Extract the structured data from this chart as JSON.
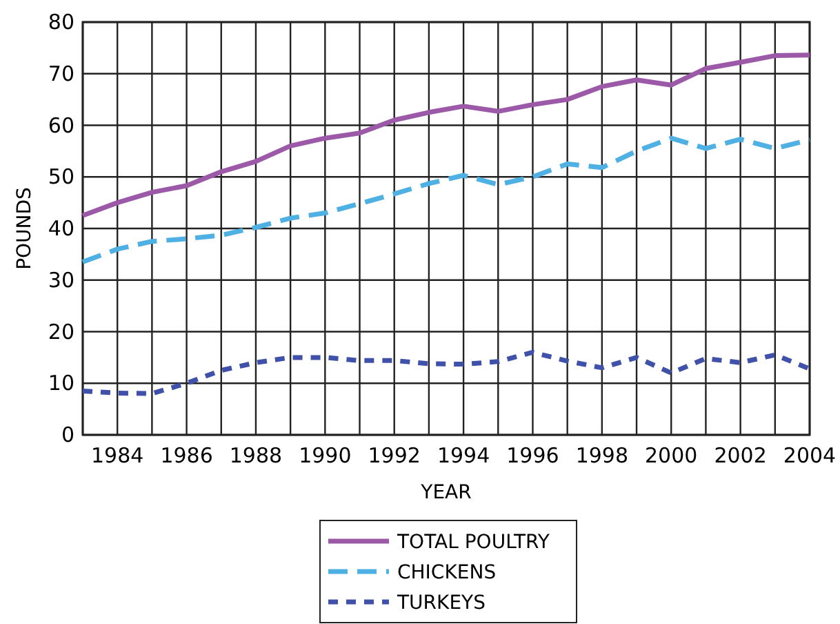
{
  "chart_data": {
    "type": "line",
    "xlabel": "YEAR",
    "ylabel": "POUNDS",
    "x": [
      1983,
      1984,
      1985,
      1986,
      1987,
      1988,
      1989,
      1990,
      1991,
      1992,
      1993,
      1994,
      1995,
      1996,
      1997,
      1998,
      1999,
      2000,
      2001,
      2002,
      2003,
      2004
    ],
    "series": [
      {
        "name": "TOTAL POULTRY",
        "color": "#9b59a8",
        "line_style": "solid",
        "values": [
          42.5,
          45,
          47,
          48.3,
          51,
          53,
          56,
          57.5,
          58.5,
          61,
          62.5,
          63.7,
          62.7,
          64,
          65,
          67.5,
          68.8,
          67.8,
          71,
          72.2,
          73.5,
          73.6
        ]
      },
      {
        "name": "CHICKENS",
        "color": "#4fb0e3",
        "line_style": "dashed",
        "values": [
          33.5,
          36,
          37.5,
          38,
          38.7,
          40.2,
          42,
          43,
          44.8,
          46.7,
          48.7,
          50.3,
          48.5,
          50,
          52.5,
          51.8,
          55,
          57.5,
          55.5,
          57.3,
          55.5,
          57.2
        ]
      },
      {
        "name": "TURKEYS",
        "color": "#3f51a8",
        "line_style": "dotted",
        "values": [
          8.5,
          8.1,
          8,
          10,
          12.5,
          14,
          15,
          15,
          14.4,
          14.4,
          13.8,
          13.7,
          14.2,
          16,
          14.3,
          13,
          15,
          12,
          14.8,
          14,
          15.5,
          12.8
        ]
      }
    ],
    "xlim": [
      1983,
      2004
    ],
    "xticks": [
      {
        "value": 1983,
        "label": null
      },
      1984,
      {
        "value": 1985,
        "label": null
      },
      1986,
      {
        "value": 1987,
        "label": null
      },
      1988,
      {
        "value": 1989,
        "label": null
      },
      1990,
      {
        "value": 1991,
        "label": null
      },
      1992,
      {
        "value": 1993,
        "label": null
      },
      1994,
      {
        "value": 1995,
        "label": null
      },
      1996,
      {
        "value": 1997,
        "label": null
      },
      1998,
      {
        "value": 1999,
        "label": null
      },
      2000,
      {
        "value": 2001,
        "label": null
      },
      2002,
      {
        "value": 2003,
        "label": null
      },
      2004
    ],
    "ylim": [
      0,
      80
    ],
    "yticks": [
      0,
      10,
      20,
      30,
      40,
      50,
      60,
      70,
      80
    ],
    "grid": true,
    "legend": "bottom",
    "marker": "none"
  }
}
